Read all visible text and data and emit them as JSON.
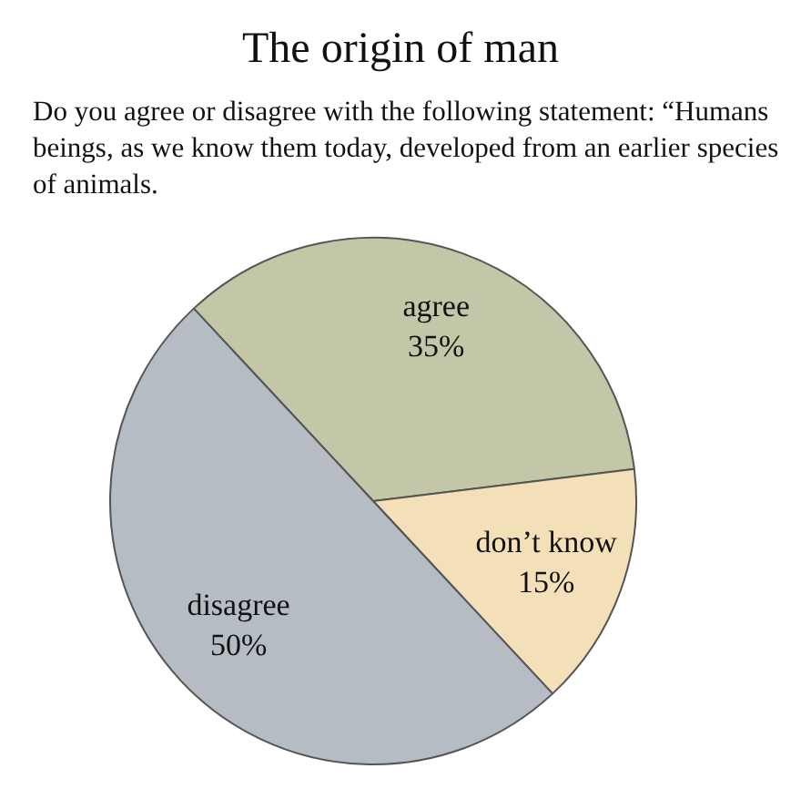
{
  "chart_data": {
    "type": "pie",
    "title": "The origin of man",
    "subtitle": "Do you agree or disagree with the following statement: “Humans beings, as we know them today, developed from an earlier species of animals.",
    "categories": [
      "agree",
      "don’t know",
      "disagree"
    ],
    "values": [
      35,
      15,
      50
    ],
    "colors": [
      "#c3c7a8",
      "#f3dfb8",
      "#b5bcc3"
    ],
    "value_labels": [
      "35%",
      "15%",
      "50%"
    ],
    "legend": false
  }
}
